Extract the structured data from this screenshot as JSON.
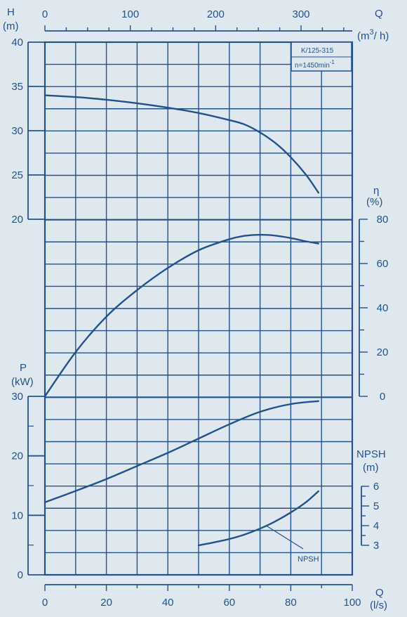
{
  "chart_data": {
    "type": "line",
    "info_box": {
      "line1": "K/125-315",
      "line2": "n=1450min",
      "line2_sup": "-1"
    },
    "axes": {
      "q_m3h": {
        "label": "Q",
        "unit_base": "(m",
        "unit_sup": "3",
        "unit_tail": "/ h)",
        "ticks": [
          0,
          100,
          200,
          300
        ]
      },
      "q_ls": {
        "label": "Q",
        "unit": "(l/s)",
        "ticks": [
          0,
          20,
          40,
          60,
          80,
          100
        ],
        "range": [
          0,
          100
        ]
      },
      "head": {
        "label": "H",
        "unit": "(m)",
        "ticks": [
          20,
          25,
          30,
          35,
          40
        ],
        "range": [
          20,
          40
        ]
      },
      "efficiency": {
        "label": "η",
        "unit": "(%)",
        "ticks": [
          0,
          20,
          40,
          60,
          80
        ],
        "range": [
          0,
          80
        ]
      },
      "power": {
        "label": "P",
        "unit": "(kW)",
        "ticks": [
          0,
          10,
          20,
          30
        ],
        "range": [
          0,
          30
        ]
      },
      "npsh": {
        "label": "NPSH",
        "unit": "(m)",
        "ticks": [
          3,
          4,
          5,
          6
        ],
        "range": [
          3,
          6
        ]
      }
    },
    "series": [
      {
        "key": "head",
        "axis": "head",
        "x": [
          0,
          10,
          20,
          30,
          40,
          50,
          60,
          65,
          70,
          75,
          80,
          85,
          89
        ],
        "y": [
          34,
          33.8,
          33.5,
          33.1,
          32.6,
          32.0,
          31.2,
          30.7,
          29.8,
          28.6,
          27.0,
          25.0,
          23.0
        ]
      },
      {
        "key": "efficiency",
        "axis": "efficiency",
        "x": [
          0,
          10,
          20,
          30,
          40,
          50,
          60,
          65,
          70,
          75,
          80,
          85,
          89
        ],
        "y": [
          0,
          20,
          36,
          48,
          58,
          66,
          71,
          72.5,
          73,
          72.6,
          71.5,
          70,
          69
        ]
      },
      {
        "key": "power",
        "axis": "power",
        "x": [
          0,
          10,
          20,
          30,
          40,
          50,
          60,
          70,
          80,
          89
        ],
        "y": [
          12.2,
          14.1,
          16.1,
          18.3,
          20.5,
          22.9,
          25.3,
          27.4,
          28.7,
          29.2
        ]
      },
      {
        "key": "npsh",
        "axis": "npsh",
        "name": "NPSH",
        "x": [
          50,
          55,
          60,
          65,
          70,
          75,
          80,
          85,
          89
        ],
        "y": [
          3.0,
          3.15,
          3.32,
          3.55,
          3.85,
          4.22,
          4.67,
          5.2,
          5.75
        ]
      }
    ],
    "annotation": {
      "text": "NPSH",
      "points_to_x": 72,
      "points_to_series": "npsh"
    }
  }
}
